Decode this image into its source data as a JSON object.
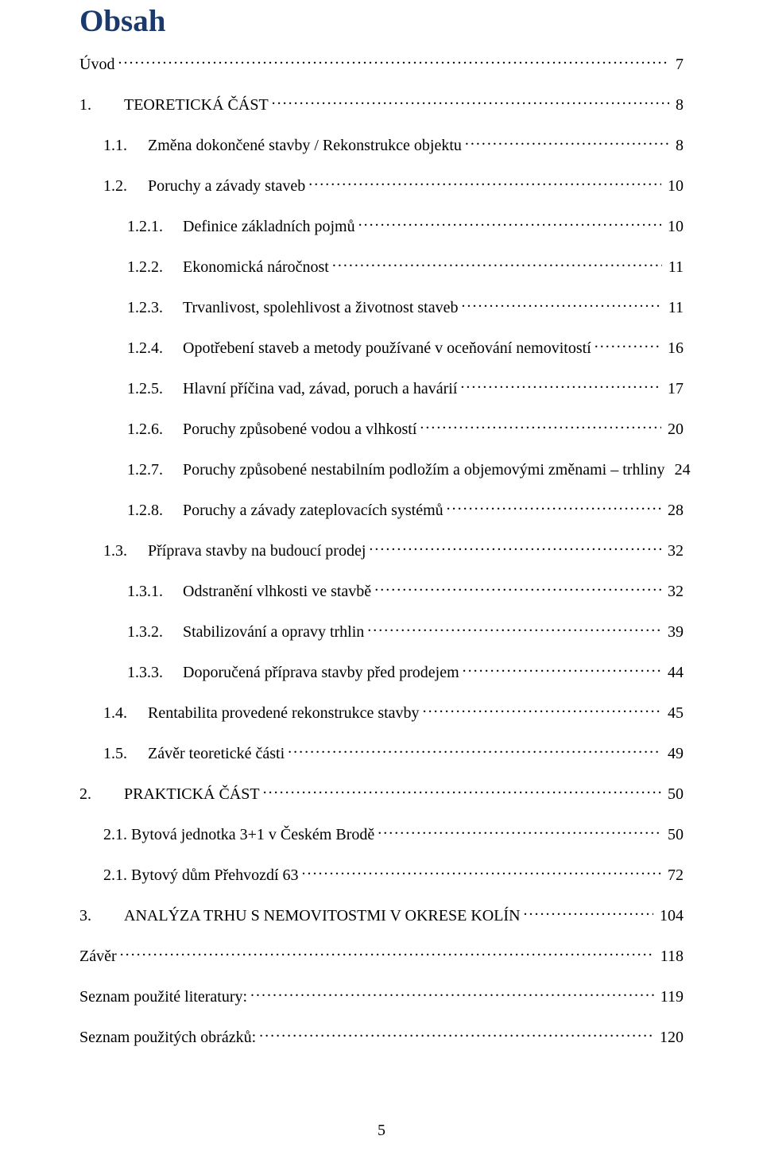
{
  "colors": {
    "title_color": "#1a3a6e",
    "text_color": "#000000",
    "background_color": "#ffffff"
  },
  "typography": {
    "title_fontsize_pt": 28,
    "body_fontsize_pt": 15,
    "font_family": "Times New Roman"
  },
  "page_footer_number": "5",
  "title": "Obsah",
  "toc": [
    {
      "indent": 0,
      "num": "",
      "text": "Úvod",
      "page": "7"
    },
    {
      "indent": 0,
      "num": "1.",
      "text": "TEORETICKÁ ČÁST",
      "page": "8"
    },
    {
      "indent": 1,
      "num": "1.1.",
      "text": "Změna dokončené stavby / Rekonstrukce objektu",
      "page": "8"
    },
    {
      "indent": 1,
      "num": "1.2.",
      "text": "Poruchy a závady staveb",
      "page": "10"
    },
    {
      "indent": 2,
      "num": "1.2.1.",
      "text": "Definice základních pojmů",
      "page": "10"
    },
    {
      "indent": 2,
      "num": "1.2.2.",
      "text": "Ekonomická náročnost",
      "page": "11"
    },
    {
      "indent": 2,
      "num": "1.2.3.",
      "text": "Trvanlivost, spolehlivost a životnost staveb",
      "page": "11"
    },
    {
      "indent": 2,
      "num": "1.2.4.",
      "text": "Opotřebení staveb a metody používané v oceňování nemovitostí",
      "page": "16"
    },
    {
      "indent": 2,
      "num": "1.2.5.",
      "text": "Hlavní příčina vad, závad, poruch a havárií",
      "page": "17"
    },
    {
      "indent": 2,
      "num": "1.2.6.",
      "text": "Poruchy způsobené vodou a vlhkostí",
      "page": "20"
    },
    {
      "indent": 2,
      "num": "1.2.7.",
      "text": "Poruchy způsobené nestabilním podložím a objemovými změnami – trhliny",
      "page": "24"
    },
    {
      "indent": 2,
      "num": "1.2.8.",
      "text": "Poruchy a závady zateplovacích systémů",
      "page": "28"
    },
    {
      "indent": 1,
      "num": "1.3.",
      "text": "Příprava stavby na budoucí prodej",
      "page": "32"
    },
    {
      "indent": 2,
      "num": "1.3.1.",
      "text": "Odstranění vlhkosti ve stavbě",
      "page": "32"
    },
    {
      "indent": 2,
      "num": "1.3.2.",
      "text": "Stabilizování a opravy trhlin",
      "page": "39"
    },
    {
      "indent": 2,
      "num": "1.3.3.",
      "text": "Doporučená příprava stavby před prodejem",
      "page": "44"
    },
    {
      "indent": 1,
      "num": "1.4.",
      "text": "Rentabilita provedené rekonstrukce stavby",
      "page": "45"
    },
    {
      "indent": 1,
      "num": "1.5.",
      "text": "Závěr teoretické části",
      "page": "49"
    },
    {
      "indent": 0,
      "num": "2.",
      "text": "PRAKTICKÁ ČÁST",
      "page": "50"
    },
    {
      "indent": 1,
      "num": "",
      "text": "2.1. Bytová jednotka 3+1 v Českém Brodě",
      "page": "50"
    },
    {
      "indent": 1,
      "num": "",
      "text": "2.1. Bytový dům Přehvozdí 63",
      "page": "72"
    },
    {
      "indent": 0,
      "num": "3.",
      "text": "ANALÝZA TRHU S NEMOVITOSTMI V OKRESE KOLÍN",
      "page": "104"
    },
    {
      "indent": 0,
      "num": "",
      "text": "Závěr",
      "page": "118"
    },
    {
      "indent": 0,
      "num": "",
      "text": "Seznam použité literatury:",
      "page": "119"
    },
    {
      "indent": 0,
      "num": "",
      "text": "Seznam použitých obrázků:",
      "page": "120"
    }
  ]
}
